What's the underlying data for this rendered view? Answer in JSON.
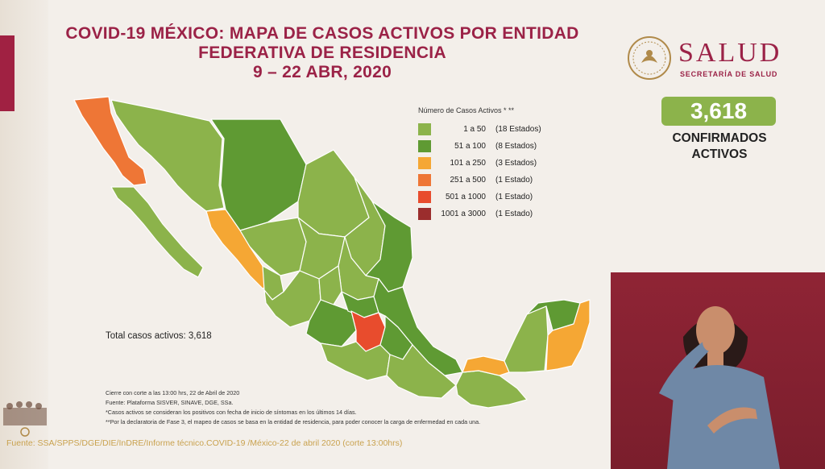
{
  "title": {
    "line1": "COVID-19 MÉXICO: MAPA DE CASOS ACTIVOS POR ENTIDAD",
    "line2": "FEDERATIVA DE RESIDENCIA",
    "line3": "9 – 22 ABR, 2020"
  },
  "brand": {
    "name": "SALUD",
    "subtitle": "SECRETARÍA DE SALUD"
  },
  "summary": {
    "count": "3,618",
    "label_line1": "CONFIRMADOS",
    "label_line2": "ACTIVOS"
  },
  "legend": {
    "title": "Número de Casos Activos * **",
    "items": [
      {
        "range": "1 a 50",
        "states": "(18 Estados)",
        "color": "#8cb34b"
      },
      {
        "range": "51 a 100",
        "states": "(8 Estados)",
        "color": "#5f9a33"
      },
      {
        "range": "101 a 250",
        "states": "(3 Estados)",
        "color": "#f5a734"
      },
      {
        "range": "251 a 500",
        "states": "(1 Estado)",
        "color": "#ee7636"
      },
      {
        "range": "501 a 1000",
        "states": "(1 Estado)",
        "color": "#e84c2d"
      },
      {
        "range": "1001 a 3000",
        "states": "(1 Estado)",
        "color": "#9b2d2d"
      }
    ]
  },
  "total_text": "Total casos activos: 3,618",
  "notes": [
    "Cierre con corte a las 13:00 hrs, 22 de Abril de 2020",
    "Fuente: Plataforma SISVER, SINAVE, DGE, SSa.",
    "*Casos activos se consideran los positivos con fecha de inicio de síntomas en los últimos 14 días.",
    "**Por la declaratoria de Fase 3, el mapeo de casos se basa en la entidad de residencia, para poder conocer la carga de enfermedad en cada una."
  ],
  "footer_source": "Fuente: SSA/SPPS/DGE/DIE/InDRE/Informe técnico.COVID-19 /México-22 de abril 2020 (corte 13:00hrs)",
  "map_colors": {
    "light": "#8cb34b",
    "medium": "#5f9a33",
    "orange": "#f5a734",
    "dark_orange": "#ee7636",
    "red": "#e84c2d",
    "border": "#ffffff"
  }
}
